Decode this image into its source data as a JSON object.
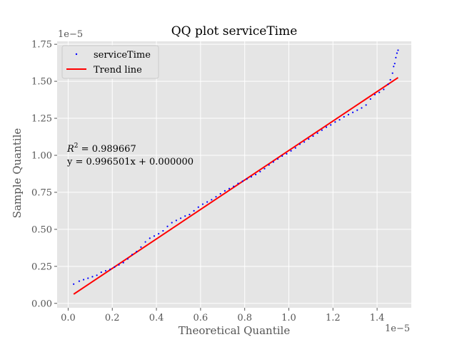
{
  "chart_data": {
    "type": "scatter",
    "title": "QQ plot serviceTime",
    "xlabel": "Theoretical Quantile",
    "ylabel": "Sample Quantile",
    "x_offset_label": "1e−5",
    "y_offset_label": "1e−5",
    "xlim": [
      -0.05,
      1.555
    ],
    "ylim": [
      -0.03,
      1.77
    ],
    "x_ticks": [
      0.0,
      0.2,
      0.4,
      0.6,
      0.8,
      1.0,
      1.2,
      1.4
    ],
    "x_tick_labels": [
      "0.0",
      "0.2",
      "0.4",
      "0.6",
      "0.8",
      "1.0",
      "1.2",
      "1.4"
    ],
    "y_ticks": [
      0.0,
      0.25,
      0.5,
      0.75,
      1.0,
      1.25,
      1.5,
      1.75
    ],
    "y_tick_labels": [
      "0.00",
      "0.25",
      "0.50",
      "0.75",
      "1.00",
      "1.25",
      "1.50",
      "1.75"
    ],
    "grid": true,
    "legend_position": "upper-left",
    "series": [
      {
        "name": "serviceTime",
        "kind": "scatter",
        "color": "#0000ff",
        "points": [
          [
            0.025,
            0.13
          ],
          [
            0.05,
            0.15
          ],
          [
            0.07,
            0.16
          ],
          [
            0.09,
            0.17
          ],
          [
            0.11,
            0.18
          ],
          [
            0.13,
            0.19
          ],
          [
            0.15,
            0.21
          ],
          [
            0.17,
            0.22
          ],
          [
            0.19,
            0.23
          ],
          [
            0.21,
            0.245
          ],
          [
            0.23,
            0.26
          ],
          [
            0.25,
            0.275
          ],
          [
            0.27,
            0.3
          ],
          [
            0.29,
            0.33
          ],
          [
            0.31,
            0.35
          ],
          [
            0.33,
            0.38
          ],
          [
            0.35,
            0.415
          ],
          [
            0.37,
            0.44
          ],
          [
            0.39,
            0.455
          ],
          [
            0.41,
            0.47
          ],
          [
            0.43,
            0.49
          ],
          [
            0.45,
            0.52
          ],
          [
            0.47,
            0.545
          ],
          [
            0.49,
            0.56
          ],
          [
            0.51,
            0.575
          ],
          [
            0.53,
            0.59
          ],
          [
            0.55,
            0.6
          ],
          [
            0.57,
            0.625
          ],
          [
            0.59,
            0.65
          ],
          [
            0.61,
            0.67
          ],
          [
            0.63,
            0.685
          ],
          [
            0.65,
            0.7
          ],
          [
            0.67,
            0.72
          ],
          [
            0.69,
            0.74
          ],
          [
            0.71,
            0.76
          ],
          [
            0.73,
            0.775
          ],
          [
            0.75,
            0.79
          ],
          [
            0.77,
            0.81
          ],
          [
            0.79,
            0.825
          ],
          [
            0.81,
            0.84
          ],
          [
            0.83,
            0.855
          ],
          [
            0.85,
            0.87
          ],
          [
            0.87,
            0.89
          ],
          [
            0.89,
            0.91
          ],
          [
            0.91,
            0.935
          ],
          [
            0.93,
            0.955
          ],
          [
            0.95,
            0.975
          ],
          [
            0.97,
            0.995
          ],
          [
            0.99,
            1.01
          ],
          [
            1.01,
            1.03
          ],
          [
            1.03,
            1.05
          ],
          [
            1.05,
            1.075
          ],
          [
            1.07,
            1.09
          ],
          [
            1.09,
            1.11
          ],
          [
            1.11,
            1.13
          ],
          [
            1.13,
            1.15
          ],
          [
            1.15,
            1.17
          ],
          [
            1.17,
            1.19
          ],
          [
            1.19,
            1.205
          ],
          [
            1.21,
            1.225
          ],
          [
            1.23,
            1.24
          ],
          [
            1.25,
            1.26
          ],
          [
            1.27,
            1.275
          ],
          [
            1.29,
            1.29
          ],
          [
            1.31,
            1.305
          ],
          [
            1.33,
            1.32
          ],
          [
            1.35,
            1.34
          ],
          [
            1.37,
            1.38
          ],
          [
            1.39,
            1.41
          ],
          [
            1.41,
            1.425
          ],
          [
            1.43,
            1.445
          ],
          [
            1.45,
            1.48
          ],
          [
            1.46,
            1.51
          ],
          [
            1.47,
            1.555
          ],
          [
            1.475,
            1.6
          ],
          [
            1.48,
            1.62
          ],
          [
            1.485,
            1.66
          ],
          [
            1.49,
            1.69
          ],
          [
            1.495,
            1.71
          ]
        ]
      },
      {
        "name": "Trend line",
        "kind": "line",
        "color": "#ff0000",
        "points": [
          [
            0.025,
            0.062
          ],
          [
            1.495,
            1.525
          ]
        ]
      }
    ],
    "annotations": [
      {
        "latex_label": "R",
        "superscript": "2",
        "text": " = 0.989667"
      },
      {
        "text": "y = 0.996501x + 0.000000"
      }
    ]
  }
}
